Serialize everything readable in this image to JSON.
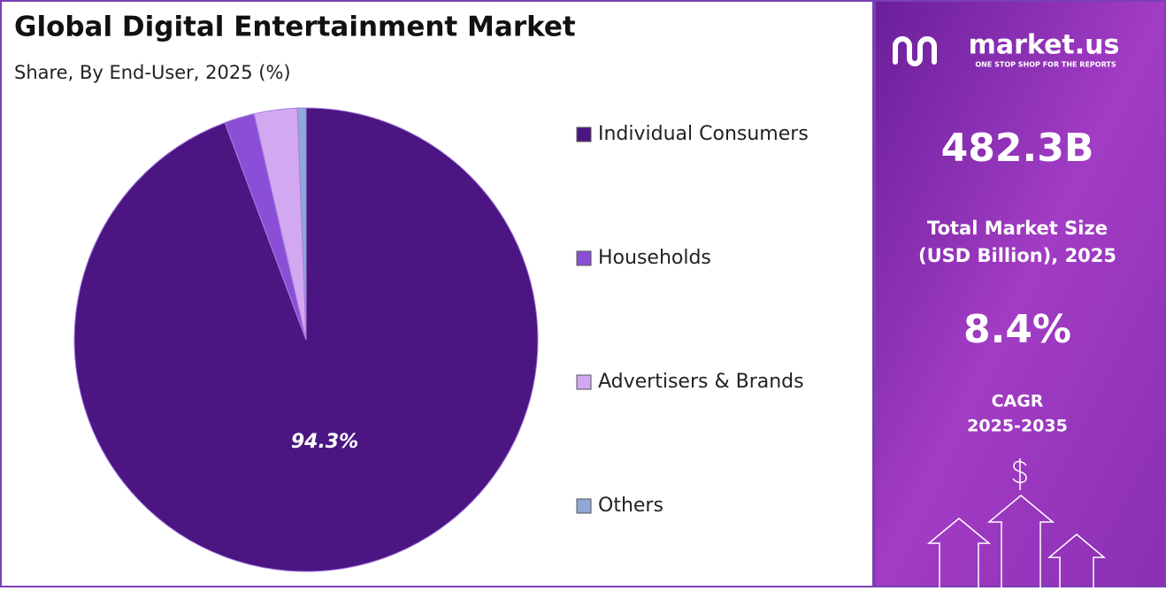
{
  "chart_data": {
    "type": "pie",
    "title": "Global Digital Entertainment Market",
    "subtitle": "Share, By End-User, 2025 (%)",
    "categories": [
      "Individual Consumers",
      "Households",
      "Advertisers & Brands",
      "Others"
    ],
    "values": [
      94.3,
      2.1,
      3.0,
      0.6
    ],
    "value_labels": [
      "94.3%",
      null,
      null,
      null
    ],
    "colors": [
      "#4b1682",
      "#8a4fd6",
      "#d2a8f0",
      "#8fa8d8"
    ],
    "legend": "right"
  },
  "panel": {
    "brand": "market.us",
    "tagline": "ONE STOP SHOP FOR THE REPORTS",
    "market_size": "482.3B",
    "market_size_label": [
      "Total Market Size",
      "(USD Billion), 2025"
    ],
    "cagr": "8.4%",
    "cagr_label": [
      "CAGR",
      "2025-2035"
    ]
  }
}
